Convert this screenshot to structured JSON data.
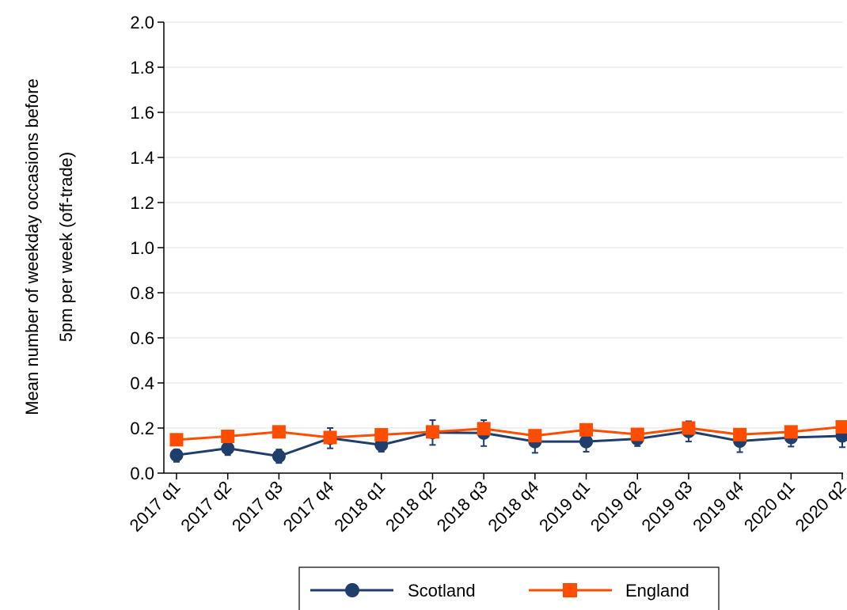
{
  "chart_data": {
    "type": "line",
    "title": "",
    "ylabel_lines": [
      "Mean number of weekday occasions before",
      "5pm per week (off-trade)"
    ],
    "xlabel": "",
    "ylim": [
      0,
      2.0
    ],
    "yticks": [
      "0.0",
      "0.2",
      "0.4",
      "0.6",
      "0.8",
      "1.0",
      "1.2",
      "1.4",
      "1.6",
      "1.8",
      "2.0"
    ],
    "categories": [
      "2017 q1",
      "2017 q2",
      "2017 q3",
      "2017 q4",
      "2018 q1",
      "2018 q2",
      "2018 q3",
      "2018 q4",
      "2019 q1",
      "2019 q2",
      "2019 q3",
      "2019 q4",
      "2020 q1",
      "2020 q2"
    ],
    "grid": "horizontal",
    "legend_position": "bottom-center",
    "series": [
      {
        "name": "Scotland",
        "color": "#1f3e6b",
        "marker": "circle",
        "values": [
          0.08,
          0.11,
          0.075,
          0.155,
          0.125,
          0.18,
          0.178,
          0.14,
          0.14,
          0.152,
          0.185,
          0.142,
          0.158,
          0.165
        ],
        "ci_lower": [
          0.05,
          0.08,
          0.045,
          0.11,
          0.095,
          0.125,
          0.12,
          0.09,
          0.095,
          0.12,
          0.14,
          0.093,
          0.118,
          0.115
        ],
        "ci_upper": [
          0.105,
          0.14,
          0.105,
          0.2,
          0.16,
          0.235,
          0.235,
          0.19,
          0.185,
          0.19,
          0.23,
          0.19,
          0.2,
          0.215
        ]
      },
      {
        "name": "England",
        "color": "#ff4d00",
        "marker": "square",
        "values": [
          0.148,
          0.163,
          0.183,
          0.158,
          0.17,
          0.183,
          0.197,
          0.166,
          0.192,
          0.172,
          0.2,
          0.171,
          0.183,
          0.205
        ]
      }
    ]
  },
  "colors": {
    "grid": "#e6e6e6",
    "axis": "#000000"
  }
}
